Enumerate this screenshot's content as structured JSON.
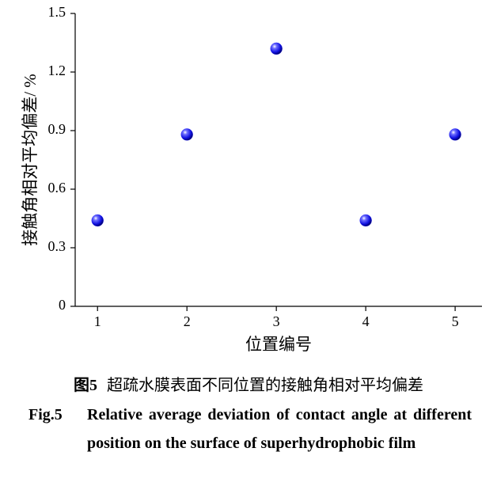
{
  "chart_data": {
    "type": "scatter",
    "y_label": "接触角相对平均偏差/ %",
    "x_label": "位置编号",
    "x": [
      1,
      2,
      3,
      4,
      5
    ],
    "values": [
      0.44,
      0.88,
      1.32,
      0.44,
      0.88
    ],
    "color": "#1a1aff",
    "xlim": [
      0.75,
      5.3
    ],
    "xticks": [
      1,
      2,
      3,
      4,
      5
    ],
    "ylim": [
      0,
      1.5
    ],
    "yticks": [
      0,
      0.3,
      0.6,
      0.9,
      1.2,
      1.5
    ],
    "grid": false
  },
  "caption": {
    "cn_label": "图5",
    "cn_text": "超疏水膜表面不同位置的接触角相对平均偏差",
    "en_label": "Fig.5",
    "en_text": "Relative average deviation of contact angle at different position on the surface of superhydrophobic film"
  }
}
